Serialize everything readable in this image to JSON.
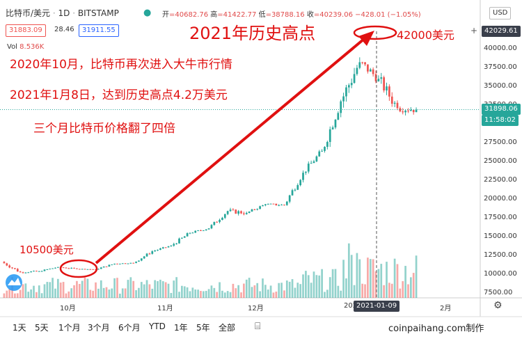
{
  "header": {
    "symbol": "比特币/美元",
    "interval": "1D",
    "exchange": "BITSTAMP",
    "ohlc": {
      "open_label": "开",
      "open": "=40682.76",
      "high_label": "高",
      "high": "=41422.77",
      "low_label": "低",
      "low": "=38788.16",
      "close_label": "收",
      "close": "=40239.06",
      "change": "−428.01 (−1.05%)"
    },
    "bid": "31883.09",
    "spread": "28.46",
    "ask": "31911.55",
    "volume_label": "Vol",
    "volume_value": "8.536K",
    "currency": "USD"
  },
  "price_axis": {
    "ticks": [
      "40000.00",
      "37500.00",
      "35000.00",
      "32500.00",
      "30000.00",
      "27500.00",
      "25000.00",
      "22500.00",
      "20000.00",
      "17500.00",
      "15000.00",
      "12500.00",
      "10000.00",
      "7500.00"
    ],
    "crosshair_price": "42029.61",
    "last_price": "31898.06",
    "countdown": "11:58:02",
    "plus_icon": "+"
  },
  "time_axis": {
    "labels": [
      "10月",
      "11月",
      "12月",
      "202"
    ],
    "crosshair_date": "2021-01-09",
    "end_label": "2月"
  },
  "annotations": {
    "peak_title": "2021年历史高点",
    "peak_price": "42000美元",
    "line1": "2020年10月，比特币再次进入大牛市行情",
    "line2": "2021年1月8日，达到历史高点4.2万美元",
    "line3": "三个月比特币价格翻了四倍",
    "start_price": "10500美元"
  },
  "toolbar": {
    "ranges": [
      "1天",
      "5天",
      "1个月",
      "3个月",
      "6个月",
      "YTD",
      "1年",
      "5年",
      "全部"
    ],
    "calendar_icon": "calendar-range-icon",
    "watermark": "coinpaihang.com制作"
  },
  "colors": {
    "up": "#26a69a",
    "down": "#ef5350",
    "annotation": "#e01010"
  },
  "chart_data": {
    "type": "candlestick",
    "title": "比特币/美元 · 1D · BITSTAMP",
    "x_start": "2020-09-01",
    "x_end": "2021-02-05",
    "y_axis": "price USD",
    "ylim": [
      6500,
      45000
    ],
    "candles_weekly": [
      {
        "week": "2020-09-01",
        "open": 11650,
        "high": 12050,
        "low": 10000,
        "close": 10250
      },
      {
        "week": "2020-09-08",
        "open": 10250,
        "high": 10950,
        "low": 9900,
        "close": 10400
      },
      {
        "week": "2020-09-15",
        "open": 10400,
        "high": 11150,
        "low": 10300,
        "close": 10950
      },
      {
        "week": "2020-09-22",
        "open": 10950,
        "high": 11000,
        "low": 10150,
        "close": 10700
      },
      {
        "week": "2020-09-29",
        "open": 10700,
        "high": 10950,
        "low": 10500,
        "close": 10650
      },
      {
        "week": "2020-10-06",
        "open": 10650,
        "high": 11450,
        "low": 10550,
        "close": 11400
      },
      {
        "week": "2020-10-13",
        "open": 11400,
        "high": 11700,
        "low": 11200,
        "close": 11500
      },
      {
        "week": "2020-10-20",
        "open": 11500,
        "high": 13200,
        "low": 11450,
        "close": 13050
      },
      {
        "week": "2020-10-27",
        "open": 13050,
        "high": 14100,
        "low": 12950,
        "close": 13800
      },
      {
        "week": "2020-11-03",
        "open": 13800,
        "high": 15900,
        "low": 13500,
        "close": 15500
      },
      {
        "week": "2020-11-10",
        "open": 15500,
        "high": 16400,
        "low": 15100,
        "close": 16100
      },
      {
        "week": "2020-11-17",
        "open": 16100,
        "high": 18800,
        "low": 16000,
        "close": 18400
      },
      {
        "week": "2020-11-24",
        "open": 18400,
        "high": 19400,
        "low": 16200,
        "close": 18150
      },
      {
        "week": "2020-12-01",
        "open": 18150,
        "high": 19800,
        "low": 18100,
        "close": 19300
      },
      {
        "week": "2020-12-08",
        "open": 19300,
        "high": 19400,
        "low": 17700,
        "close": 19200
      },
      {
        "week": "2020-12-15",
        "open": 19200,
        "high": 23800,
        "low": 19100,
        "close": 23500
      },
      {
        "week": "2020-12-22",
        "open": 23500,
        "high": 26800,
        "low": 22500,
        "close": 26400
      },
      {
        "week": "2020-12-29",
        "open": 26400,
        "high": 34700,
        "low": 26000,
        "close": 33000
      },
      {
        "week": "2021-01-05",
        "open": 33000,
        "high": 42000,
        "low": 30200,
        "close": 38200
      },
      {
        "week": "2021-01-12",
        "open": 38200,
        "high": 40000,
        "low": 32500,
        "close": 36000
      },
      {
        "week": "2021-01-19",
        "open": 36000,
        "high": 37800,
        "low": 28800,
        "close": 32100
      },
      {
        "week": "2021-01-26",
        "open": 32100,
        "high": 34800,
        "low": 29200,
        "close": 31900
      }
    ],
    "volume_relative": "daily bars, spike around 2021-01-11"
  }
}
